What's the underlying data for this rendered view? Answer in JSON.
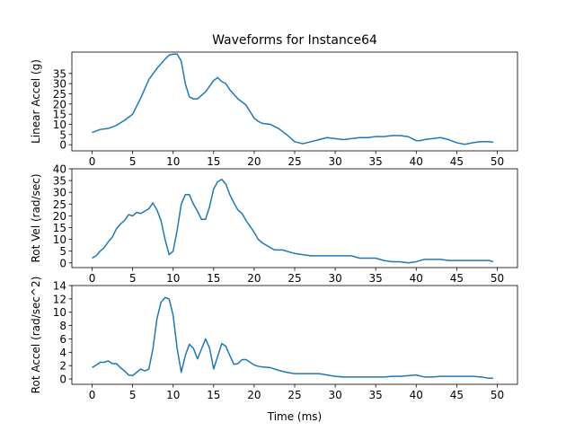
{
  "title": "Waveforms for Instance64",
  "line_color": "#1f77b4",
  "chart_data": [
    {
      "type": "line",
      "ylabel": "Linear Accel (g)",
      "xlabel": "",
      "xlim": [
        -2.5,
        52.5
      ],
      "ylim": [
        -3,
        45.5
      ],
      "xticks": [
        0,
        5,
        10,
        15,
        20,
        25,
        30,
        35,
        40,
        45,
        50
      ],
      "yticks": [
        0,
        5,
        10,
        15,
        20,
        25,
        30,
        35
      ],
      "series": [
        {
          "x": [
            0,
            1,
            2,
            3,
            4,
            5,
            6,
            7,
            8,
            9,
            9.5,
            10,
            10.5,
            11,
            11.5,
            12,
            12.5,
            13,
            14,
            15,
            15.5,
            16,
            16.5,
            17,
            18,
            19,
            20,
            20.5,
            21,
            22,
            23,
            24,
            25,
            26,
            27,
            28,
            29,
            30,
            31,
            32,
            33,
            34,
            35,
            36,
            37,
            38,
            39,
            40,
            40.5,
            41,
            42,
            43,
            44,
            45,
            46,
            47,
            48,
            49,
            49.5
          ],
          "y": [
            6,
            7.5,
            8,
            9.5,
            12,
            15,
            23,
            32,
            37.5,
            42,
            44,
            44.5,
            44.5,
            41,
            30,
            23.5,
            22.5,
            22.5,
            26,
            31.5,
            33,
            31,
            30,
            27,
            22.5,
            19.5,
            13,
            11.5,
            10.5,
            10,
            8,
            5,
            1.5,
            0.5,
            1.5,
            2.5,
            3.5,
            3,
            2.5,
            3,
            3.5,
            3.5,
            4,
            4,
            4.5,
            4.5,
            4,
            2,
            2,
            2.5,
            3,
            3.5,
            2.5,
            1,
            0.2,
            1,
            1.5,
            1.5,
            1.2
          ]
        }
      ]
    },
    {
      "type": "line",
      "ylabel": "Rot Vel (rad/sec)",
      "xlabel": "",
      "xlim": [
        -2.5,
        52.5
      ],
      "ylim": [
        -2,
        40
      ],
      "xticks": [
        0,
        5,
        10,
        15,
        20,
        25,
        30,
        35,
        40,
        45,
        50
      ],
      "yticks": [
        0,
        5,
        10,
        15,
        20,
        25,
        30,
        35,
        40
      ],
      "series": [
        {
          "x": [
            0,
            0.5,
            1,
            1.5,
            2,
            2.5,
            3,
            3.5,
            4,
            4.5,
            5,
            5.5,
            6,
            6.5,
            7,
            7.5,
            8,
            8.5,
            9,
            9.5,
            10,
            10.5,
            11,
            11.5,
            12,
            12.5,
            13,
            13.5,
            14,
            14.5,
            15,
            15.5,
            16,
            16.5,
            17,
            17.5,
            18,
            18.5,
            19,
            19.5,
            20,
            20.5,
            21,
            21.5,
            22,
            22.5,
            23,
            23.5,
            24,
            25,
            26,
            27,
            28,
            29,
            30,
            31,
            32,
            33,
            34,
            35,
            36,
            37,
            38,
            39,
            40,
            41,
            42,
            43,
            44,
            45,
            46,
            47,
            48,
            49,
            49.5
          ],
          "y": [
            2,
            3,
            5,
            6.5,
            9,
            11,
            14.5,
            16.5,
            18,
            20.5,
            20,
            21.5,
            21,
            22,
            23,
            25.5,
            22.5,
            18,
            10,
            3.5,
            5,
            14,
            25,
            29,
            29,
            25,
            22,
            18.5,
            18.5,
            24,
            31.5,
            34.5,
            35.5,
            33.5,
            29,
            25.5,
            22.5,
            21,
            18,
            15.5,
            13,
            10,
            8.5,
            7.5,
            6.5,
            5.5,
            5.5,
            5.5,
            5,
            4,
            3.5,
            3,
            3,
            3,
            3,
            3,
            3,
            2,
            2,
            2,
            1,
            0.5,
            0.5,
            0,
            0.5,
            1.5,
            1.5,
            1.5,
            1,
            1,
            1,
            1,
            1,
            1,
            0.5
          ]
        }
      ]
    },
    {
      "type": "line",
      "ylabel": "Rot Accel (rad/sec^2)",
      "xlabel": "Time (ms)",
      "xlim": [
        -2.5,
        52.5
      ],
      "ylim": [
        -0.8,
        14
      ],
      "xticks": [
        0,
        5,
        10,
        15,
        20,
        25,
        30,
        35,
        40,
        45,
        50
      ],
      "yticks": [
        0,
        2,
        4,
        6,
        8,
        10,
        12,
        14
      ],
      "series": [
        {
          "x": [
            0,
            0.5,
            1,
            1.5,
            2,
            2.5,
            3,
            3.5,
            4,
            4.5,
            5,
            5.5,
            6,
            6.5,
            7,
            7.5,
            8,
            8.5,
            9,
            9.5,
            10,
            10.5,
            11,
            11.5,
            12,
            12.5,
            13,
            13.5,
            14,
            14.5,
            15,
            15.5,
            16,
            16.5,
            17,
            17.5,
            18,
            18.5,
            19,
            19.5,
            20,
            20.5,
            21,
            22,
            23,
            24,
            25,
            26,
            27,
            28,
            29,
            30,
            31,
            32,
            33,
            34,
            35,
            36,
            37,
            38,
            39,
            40,
            41,
            42,
            43,
            44,
            45,
            46,
            47,
            48,
            49,
            49.5
          ],
          "y": [
            1.7,
            2.1,
            2.5,
            2.5,
            2.7,
            2.3,
            2.3,
            1.7,
            1.2,
            0.6,
            0.5,
            1,
            1.5,
            1.2,
            1.5,
            4.5,
            9,
            11.5,
            12.2,
            12,
            9.5,
            4.5,
            1,
            3.5,
            5.2,
            4.6,
            3,
            4.5,
            6,
            4.6,
            1.5,
            3.4,
            5.3,
            4.9,
            3.5,
            2.2,
            2.3,
            2.9,
            2.9,
            2.5,
            2.1,
            1.9,
            1.8,
            1.7,
            1.3,
            1,
            0.8,
            0.8,
            0.8,
            0.8,
            0.6,
            0.4,
            0.3,
            0.3,
            0.3,
            0.3,
            0.3,
            0.3,
            0.4,
            0.4,
            0.5,
            0.6,
            0.3,
            0.3,
            0.4,
            0.4,
            0.4,
            0.4,
            0.4,
            0.3,
            0.1,
            0.1
          ]
        }
      ]
    }
  ]
}
